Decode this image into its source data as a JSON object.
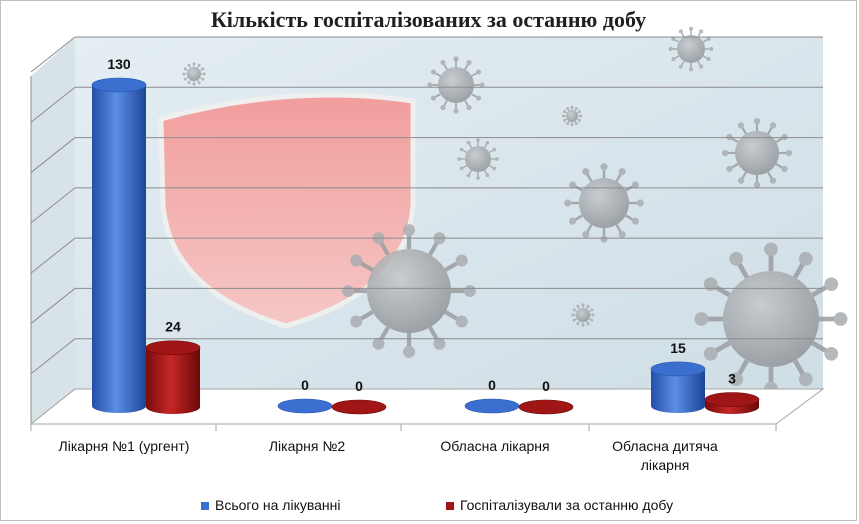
{
  "title": "Кількість госпіталізованих за останню добу",
  "colors": {
    "series1": "#3a6fd0",
    "series2": "#a01616"
  },
  "chart_data": {
    "type": "bar",
    "title": "Кількість госпіталізованих за останню добу",
    "categories": [
      "Лікарня №1 (ургент)",
      "Лікарня №2",
      "Обласна лікарня",
      "Обласна дитяча лікарня"
    ],
    "series": [
      {
        "name": "Всього на лікуванні",
        "values": [
          130,
          0,
          0,
          15
        ]
      },
      {
        "name": "Госпіталізували за останню добу",
        "values": [
          24,
          0,
          0,
          3
        ]
      }
    ],
    "ylim": [
      0,
      140
    ],
    "grid": true,
    "legend_position": "bottom"
  }
}
